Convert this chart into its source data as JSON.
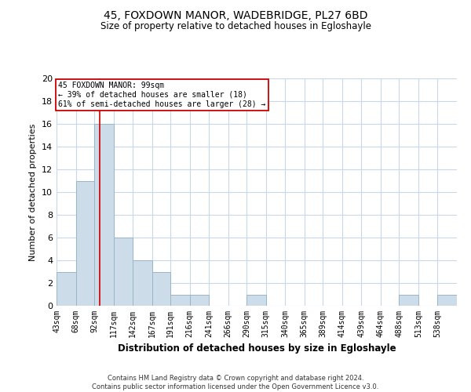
{
  "title": "45, FOXDOWN MANOR, WADEBRIDGE, PL27 6BD",
  "subtitle": "Size of property relative to detached houses in Egloshayle",
  "xlabel": "Distribution of detached houses by size in Egloshayle",
  "ylabel": "Number of detached properties",
  "footnote": "Contains HM Land Registry data © Crown copyright and database right 2024.\nContains public sector information licensed under the Open Government Licence v3.0.",
  "bin_labels": [
    "43sqm",
    "68sqm",
    "92sqm",
    "117sqm",
    "142sqm",
    "167sqm",
    "191sqm",
    "216sqm",
    "241sqm",
    "266sqm",
    "290sqm",
    "315sqm",
    "340sqm",
    "365sqm",
    "389sqm",
    "414sqm",
    "439sqm",
    "464sqm",
    "488sqm",
    "513sqm",
    "538sqm"
  ],
  "bar_values": [
    3,
    11,
    16,
    6,
    4,
    3,
    1,
    1,
    0,
    0,
    1,
    0,
    0,
    0,
    0,
    0,
    0,
    0,
    1,
    0,
    1
  ],
  "bar_color": "#ccdce8",
  "bar_edge_color": "#9ab4c8",
  "grid_color": "#c8d8e8",
  "vline_color": "#cc0000",
  "annotation_text": "45 FOXDOWN MANOR: 99sqm\n← 39% of detached houses are smaller (18)\n61% of semi-detached houses are larger (28) →",
  "annotation_box_color": "white",
  "annotation_box_edge": "#cc0000",
  "ylim": [
    0,
    20
  ],
  "yticks": [
    0,
    2,
    4,
    6,
    8,
    10,
    12,
    14,
    16,
    18,
    20
  ],
  "bin_edges": [
    43,
    68,
    92,
    117,
    142,
    167,
    191,
    216,
    241,
    266,
    290,
    315,
    340,
    365,
    389,
    414,
    439,
    464,
    488,
    513,
    538,
    563
  ],
  "vline_x_index": 2,
  "title_fontsize": 10,
  "subtitle_fontsize": 8.5,
  "ylabel_fontsize": 8,
  "xlabel_fontsize": 8.5,
  "footnote_fontsize": 6,
  "tick_fontsize": 7,
  "ytick_fontsize": 8,
  "annot_fontsize": 7
}
